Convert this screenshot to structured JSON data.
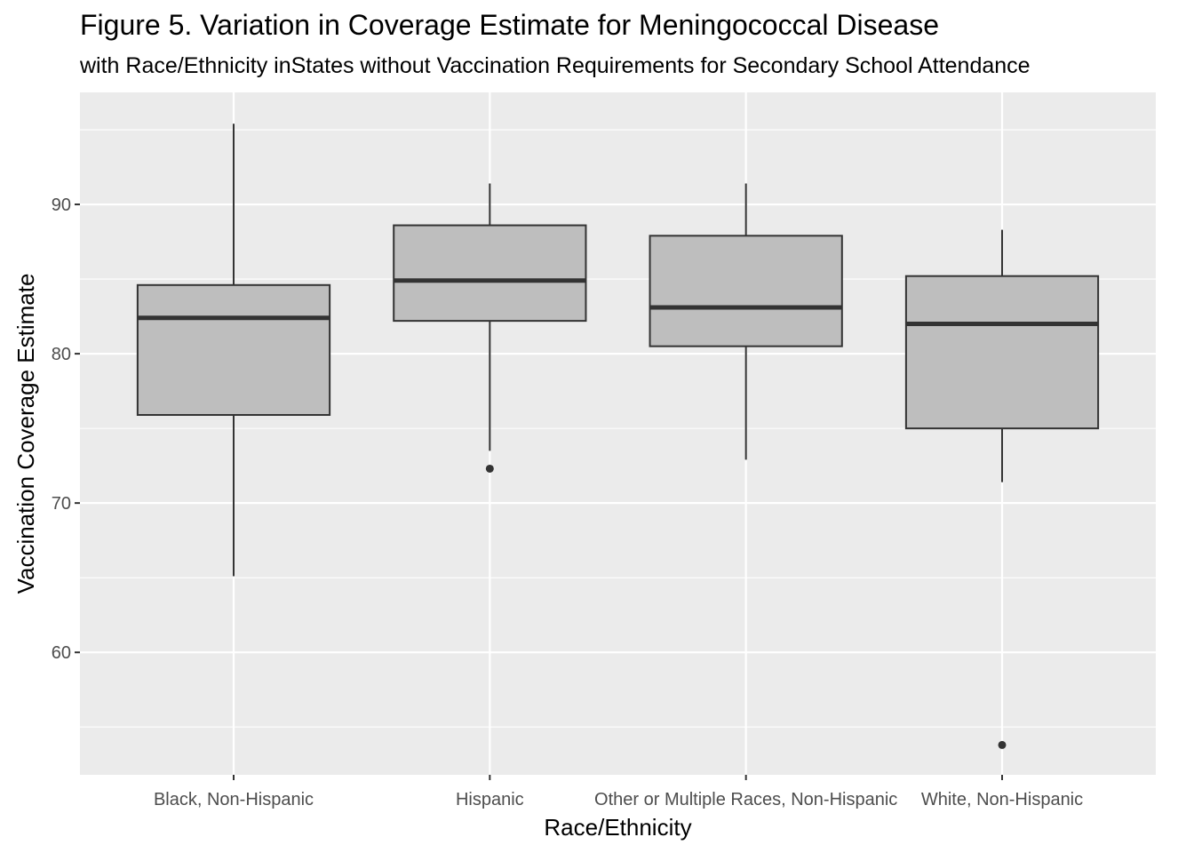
{
  "title": "Figure 5. Variation in Coverage Estimate for Meningococcal Disease",
  "subtitle": "with Race/Ethnicity inStates without Vaccination Requirements for Secondary School Attendance",
  "chart_data": {
    "type": "boxplot",
    "xlabel": "Race/Ethnicity",
    "ylabel": "Vaccination Coverage Estimate",
    "ylim": [
      51.8,
      97.5
    ],
    "yticks": [
      60,
      70,
      80,
      90
    ],
    "grid": true,
    "categories": [
      "Black, Non-Hispanic",
      "Hispanic",
      "Other or Multiple Races, Non-Hispanic",
      "White, Non-Hispanic"
    ],
    "boxes": [
      {
        "category": "Black, Non-Hispanic",
        "whisker_low": 65.1,
        "q1": 75.9,
        "median": 82.4,
        "q3": 84.6,
        "whisker_high": 95.4,
        "outliers": []
      },
      {
        "category": "Hispanic",
        "whisker_low": 73.5,
        "q1": 82.2,
        "median": 84.9,
        "q3": 88.6,
        "whisker_high": 91.4,
        "outliers": [
          72.3
        ]
      },
      {
        "category": "Other or Multiple Races, Non-Hispanic",
        "whisker_low": 72.9,
        "q1": 80.5,
        "median": 83.1,
        "q3": 87.9,
        "whisker_high": 91.4,
        "outliers": []
      },
      {
        "category": "White, Non-Hispanic",
        "whisker_low": 71.4,
        "q1": 75.0,
        "median": 82.0,
        "q3": 85.2,
        "whisker_high": 88.3,
        "outliers": [
          53.8
        ]
      }
    ],
    "colors": {
      "panel": "#ebebeb",
      "grid": "#ffffff",
      "box_fill": "#bebebe",
      "box_line": "#333333"
    }
  }
}
